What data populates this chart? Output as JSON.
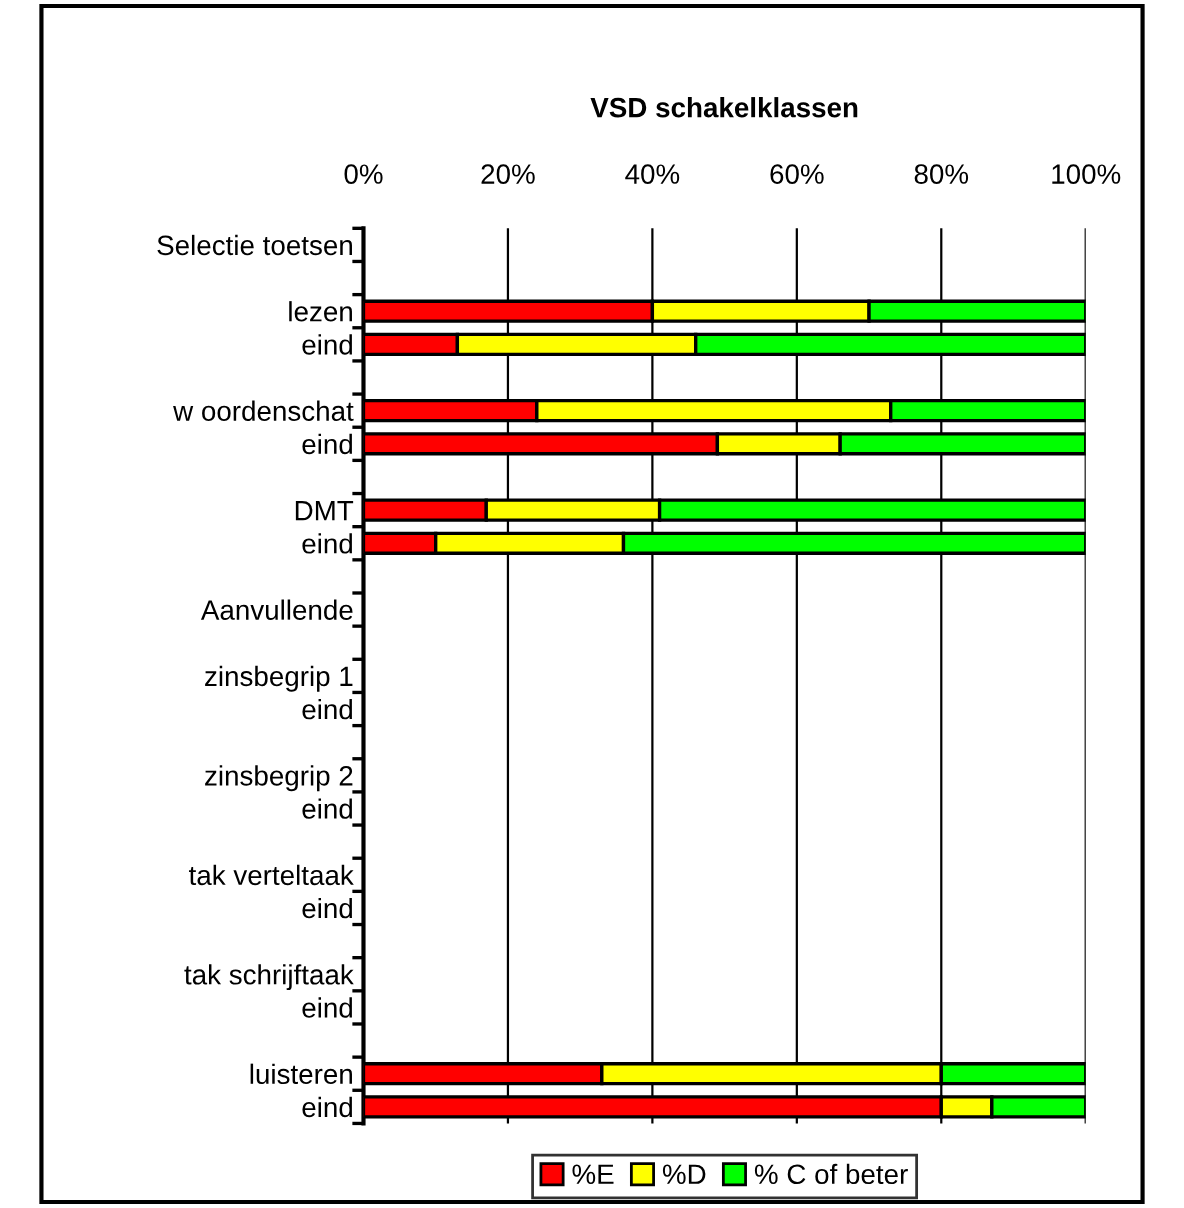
{
  "chart_data": {
    "type": "bar",
    "orientation": "horizontal",
    "stacked": true,
    "title": "VSD schakelklassen",
    "categories": [
      "Selectie toetsen",
      null,
      "lezen",
      "eind",
      null,
      "w oordenschat",
      "eind",
      null,
      "DMT",
      "eind",
      null,
      "Aanvullende",
      null,
      "zinsbegrip 1",
      "eind",
      null,
      "zinsbegrip 2",
      "eind",
      null,
      "tak verteltaak",
      "eind",
      null,
      "tak schrijftaak",
      "eind",
      null,
      "luisteren",
      "eind"
    ],
    "series": [
      {
        "name": "%E",
        "color": "#ff0000",
        "values": [
          null,
          null,
          40,
          13,
          null,
          24,
          49,
          null,
          17,
          10,
          null,
          null,
          null,
          null,
          null,
          null,
          null,
          null,
          null,
          null,
          null,
          null,
          null,
          null,
          null,
          33,
          80
        ]
      },
      {
        "name": "%D",
        "color": "#ffff00",
        "values": [
          null,
          null,
          30,
          33,
          null,
          49,
          17,
          null,
          24,
          26,
          null,
          null,
          null,
          null,
          null,
          null,
          null,
          null,
          null,
          null,
          null,
          null,
          null,
          null,
          null,
          47,
          7
        ]
      },
      {
        "name": "% C of beter",
        "color": "#00ff00",
        "values": [
          null,
          null,
          30,
          54,
          null,
          27,
          34,
          null,
          59,
          64,
          null,
          null,
          null,
          null,
          null,
          null,
          null,
          null,
          null,
          null,
          null,
          null,
          null,
          null,
          null,
          20,
          13
        ]
      }
    ],
    "xlim": [
      0,
      100
    ],
    "xticks": [
      {
        "value": 0,
        "label": "0%"
      },
      {
        "value": 20,
        "label": "20%"
      },
      {
        "value": 40,
        "label": "40%"
      },
      {
        "value": 60,
        "label": "60%"
      },
      {
        "value": 80,
        "label": "80%"
      },
      {
        "value": 100,
        "label": "100%"
      }
    ],
    "grid": "x",
    "legend": "bottom"
  }
}
